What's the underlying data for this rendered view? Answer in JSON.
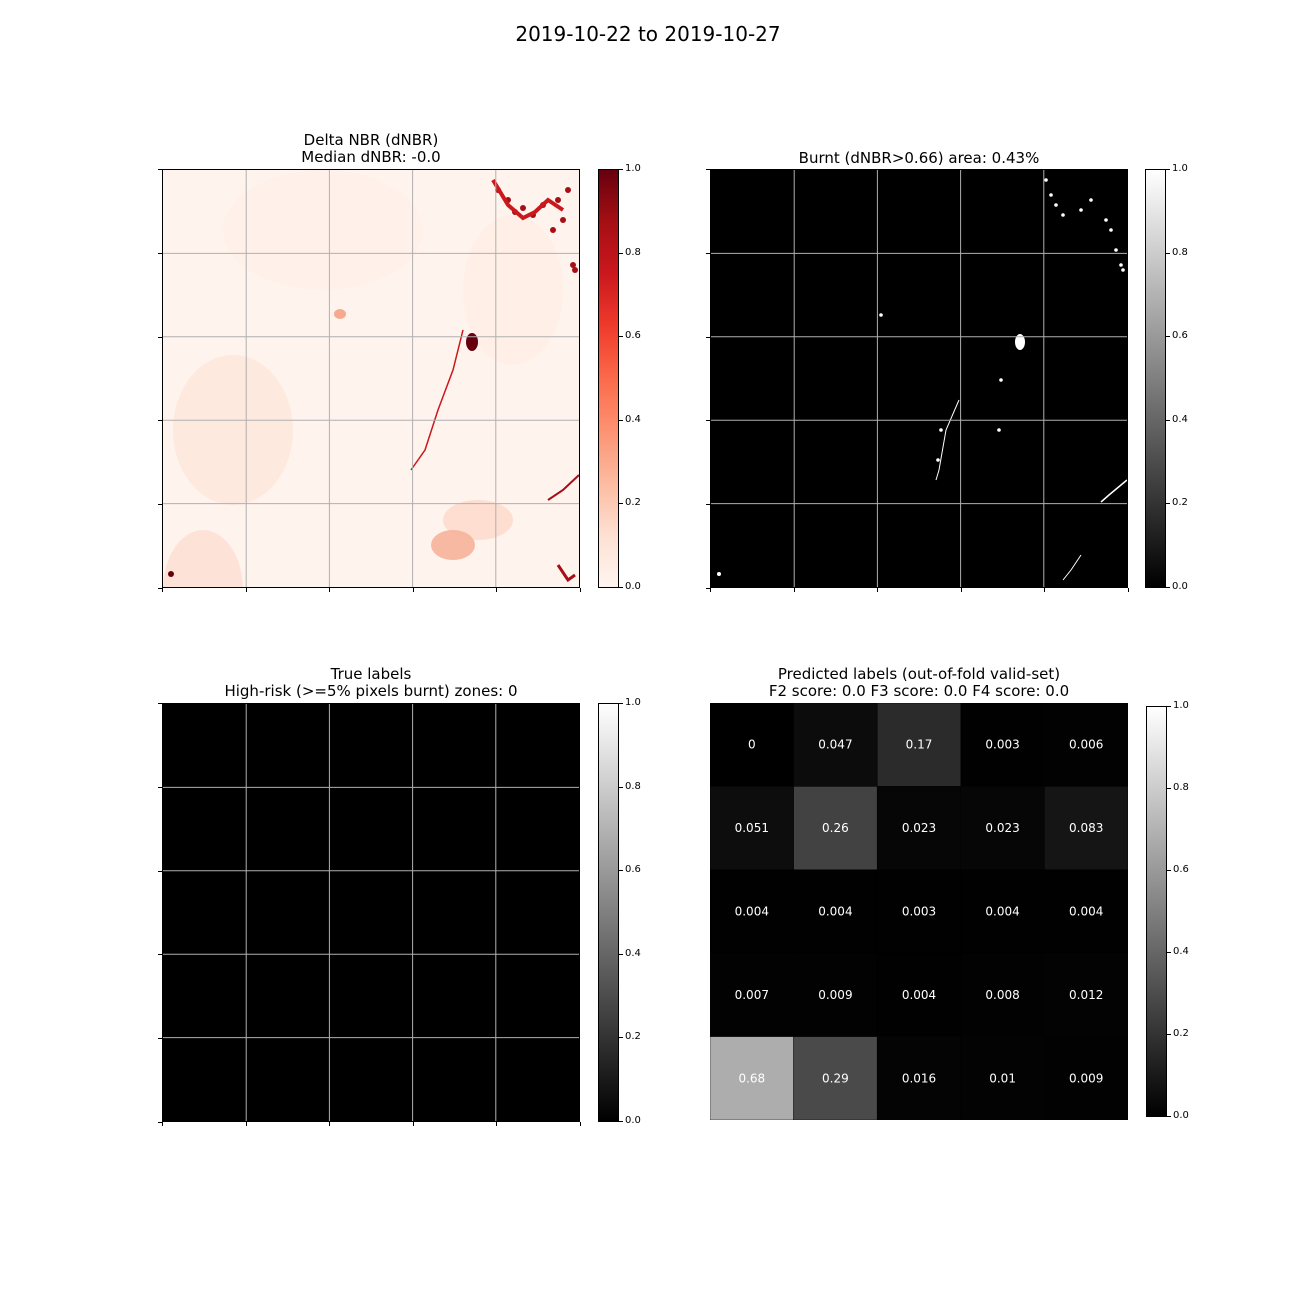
{
  "figure": {
    "suptitle": "2019-10-22 to 2019-10-27"
  },
  "panels": {
    "dnbr": {
      "title_line1": "Delta NBR (dNBR)",
      "title_line2": "Median dNBR: -0.0",
      "colormap": "Reds",
      "colorbar_ticks": [
        "0.0",
        "0.2",
        "0.4",
        "0.6",
        "0.8",
        "1.0"
      ]
    },
    "burnt": {
      "title_line1": "Burnt (dNBR>0.66) area: 0.43%",
      "colormap": "gray",
      "colorbar_ticks": [
        "0.0",
        "0.2",
        "0.4",
        "0.6",
        "0.8",
        "1.0"
      ]
    },
    "true_labels": {
      "title_line1": "True labels",
      "title_line2": "High-risk (>=5% pixels burnt) zones: 0",
      "colormap": "gray",
      "colorbar_ticks": [
        "0.0",
        "0.2",
        "0.4",
        "0.6",
        "0.8",
        "1.0"
      ]
    },
    "predicted": {
      "title_line1": "Predicted labels (out-of-fold valid-set)",
      "title_line2": "F2 score: 0.0 F3 score: 0.0 F4 score: 0.0",
      "colormap": "gray",
      "colorbar_ticks": [
        "0.0",
        "0.2",
        "0.4",
        "0.6",
        "0.8",
        "1.0"
      ]
    }
  },
  "chart_data": [
    {
      "type": "heatmap",
      "title": "Delta NBR (dNBR)\nMedian dNBR: -0.0",
      "description_level": "image raster, mostly near 0",
      "vlim": [
        0,
        1
      ],
      "grid": true
    },
    {
      "type": "heatmap",
      "title": "Burnt (dNBR>0.66) area: 0.43%",
      "vlim": [
        0,
        1
      ],
      "grid": true
    },
    {
      "type": "heatmap",
      "title": "True labels\nHigh-risk (>=5% pixels burnt) zones: 0",
      "rows": 5,
      "cols": 5,
      "values": [
        [
          0,
          0,
          0,
          0,
          0
        ],
        [
          0,
          0,
          0,
          0,
          0
        ],
        [
          0,
          0,
          0,
          0,
          0
        ],
        [
          0,
          0,
          0,
          0,
          0
        ],
        [
          0,
          0,
          0,
          0,
          0
        ]
      ],
      "vlim": [
        0,
        1
      ],
      "grid": true
    },
    {
      "type": "heatmap",
      "title": "Predicted labels (out-of-fold valid-set)\nF2 score: 0.0 F3 score: 0.0 F4 score: 0.0",
      "rows": 5,
      "cols": 5,
      "values": [
        [
          0,
          0.047,
          0.17,
          0.003,
          0.006
        ],
        [
          0.051,
          0.26,
          0.023,
          0.023,
          0.083
        ],
        [
          0.004,
          0.004,
          0.003,
          0.004,
          0.004
        ],
        [
          0.007,
          0.009,
          0.004,
          0.008,
          0.012
        ],
        [
          0.68,
          0.29,
          0.016,
          0.01,
          0.009
        ]
      ],
      "labels": [
        [
          "0",
          "0.047",
          "0.17",
          "0.003",
          "0.006"
        ],
        [
          "0.051",
          "0.26",
          "0.023",
          "0.023",
          "0.083"
        ],
        [
          "0.004",
          "0.004",
          "0.003",
          "0.004",
          "0.004"
        ],
        [
          "0.007",
          "0.009",
          "0.004",
          "0.008",
          "0.012"
        ],
        [
          "0.68",
          "0.29",
          "0.016",
          "0.01",
          "0.009"
        ]
      ],
      "vlim": [
        0,
        1
      ],
      "grid": false
    }
  ]
}
